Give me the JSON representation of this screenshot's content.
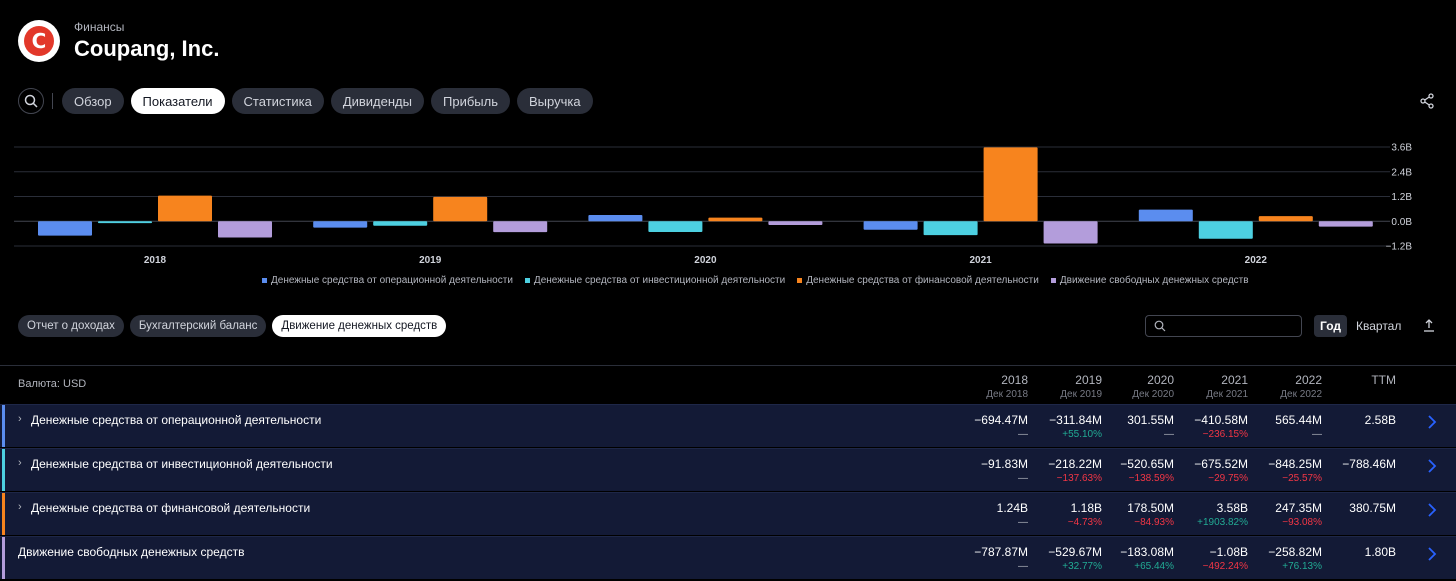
{
  "header": {
    "section": "Финансы",
    "company": "Coupang, Inc.",
    "logo_letter": "C"
  },
  "nav": {
    "tabs": [
      "Обзор",
      "Показатели",
      "Статистика",
      "Дивиденды",
      "Прибыль",
      "Выручка"
    ],
    "active_index": 1
  },
  "chart_data": {
    "type": "bar",
    "categories": [
      "2018",
      "2019",
      "2020",
      "2021",
      "2022"
    ],
    "series": [
      {
        "name": "Денежные средства от операционной деятельности",
        "color": "#5b8def",
        "values": [
          -0.69447,
          -0.31184,
          0.30155,
          -0.41058,
          0.56544
        ]
      },
      {
        "name": "Денежные средства от инвестиционной деятельности",
        "color": "#4dd0e1",
        "values": [
          -0.09183,
          -0.21822,
          -0.52065,
          -0.67552,
          -0.84825
        ]
      },
      {
        "name": "Денежные средства от финансовой деятельности",
        "color": "#f7841e",
        "values": [
          1.24,
          1.18,
          0.1785,
          3.58,
          0.24735
        ]
      },
      {
        "name": "Движение свободных денежных средств",
        "color": "#b39ddb",
        "values": [
          -0.78787,
          -0.52967,
          -0.18308,
          -1.08,
          -0.25882
        ]
      }
    ],
    "y_ticks": [
      3.6,
      2.4,
      1.2,
      0.0,
      -1.2
    ],
    "y_tick_labels": [
      "3.6B",
      "2.4B",
      "1.2B",
      "0.0B",
      "−1.2B"
    ],
    "ylim": [
      -1.2,
      3.6
    ],
    "grid": true,
    "legend": "bottom"
  },
  "subtabs": {
    "items": [
      "Отчет о доходах",
      "Бухгалтерский баланс",
      "Движение денежных средств"
    ],
    "active_index": 2
  },
  "table_search": {
    "placeholder": ""
  },
  "period": {
    "year": "Год",
    "quarter": "Квартал"
  },
  "table": {
    "currency": "Валюта: USD",
    "columns": [
      {
        "year": "2018",
        "sub": "Дек 2018"
      },
      {
        "year": "2019",
        "sub": "Дек 2019"
      },
      {
        "year": "2020",
        "sub": "Дек 2020"
      },
      {
        "year": "2021",
        "sub": "Дек 2021"
      },
      {
        "year": "2022",
        "sub": "Дек 2022"
      },
      {
        "year": "TTM",
        "sub": ""
      }
    ],
    "rows": [
      {
        "label": "Денежные средства от операционной деятельности",
        "color": "#5b8def",
        "expandable": true,
        "values": [
          "−694.47M",
          "−311.84M",
          "301.55M",
          "−410.58M",
          "565.44M",
          "2.58B"
        ],
        "changes": [
          "—",
          "+55.10%",
          "—",
          "−236.15%",
          "—",
          ""
        ],
        "change_signs": [
          "neutral",
          "pos",
          "neutral",
          "neg",
          "neutral",
          "neutral"
        ]
      },
      {
        "label": "Денежные средства от инвестиционной деятельности",
        "color": "#4dd0e1",
        "expandable": true,
        "values": [
          "−91.83M",
          "−218.22M",
          "−520.65M",
          "−675.52M",
          "−848.25M",
          "−788.46M"
        ],
        "changes": [
          "—",
          "−137.63%",
          "−138.59%",
          "−29.75%",
          "−25.57%",
          ""
        ],
        "change_signs": [
          "neutral",
          "neg",
          "neg",
          "neg",
          "neg",
          "neutral"
        ]
      },
      {
        "label": "Денежные средства от финансовой деятельности",
        "color": "#f7841e",
        "expandable": true,
        "values": [
          "1.24B",
          "1.18B",
          "178.50M",
          "3.58B",
          "247.35M",
          "380.75M"
        ],
        "changes": [
          "—",
          "−4.73%",
          "−84.93%",
          "+1903.82%",
          "−93.08%",
          ""
        ],
        "change_signs": [
          "neutral",
          "neg",
          "neg",
          "pos",
          "neg",
          "neutral"
        ]
      },
      {
        "label": "Движение свободных денежных средств",
        "color": "#b39ddb",
        "expandable": false,
        "values": [
          "−787.87M",
          "−529.67M",
          "−183.08M",
          "−1.08B",
          "−258.82M",
          "1.80B"
        ],
        "changes": [
          "—",
          "+32.77%",
          "+65.44%",
          "−492.24%",
          "+76.13%",
          ""
        ],
        "change_signs": [
          "neutral",
          "pos",
          "pos",
          "neg",
          "pos",
          "neutral"
        ]
      }
    ]
  }
}
